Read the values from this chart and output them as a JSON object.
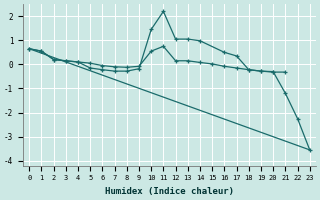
{
  "xlabel": "Humidex (Indice chaleur)",
  "background_color": "#cce8e4",
  "grid_color": "#ffffff",
  "line_color": "#1a6b6b",
  "xlim": [
    -0.5,
    23.5
  ],
  "ylim": [
    -4.2,
    2.5
  ],
  "yticks": [
    -4,
    -3,
    -2,
    -1,
    0,
    1,
    2
  ],
  "xticks": [
    0,
    1,
    2,
    3,
    4,
    5,
    6,
    7,
    8,
    9,
    10,
    11,
    12,
    13,
    14,
    15,
    16,
    17,
    18,
    19,
    20,
    21,
    22,
    23
  ],
  "series1_x": [
    0,
    1,
    2,
    3,
    4,
    5,
    6,
    7,
    8,
    9,
    10,
    11,
    12,
    13,
    14,
    15,
    16,
    17,
    18,
    19,
    20,
    21
  ],
  "series1_y": [
    0.65,
    0.55,
    0.2,
    0.15,
    0.1,
    0.05,
    -0.05,
    -0.1,
    -0.12,
    -0.08,
    0.55,
    0.75,
    0.15,
    0.15,
    0.08,
    0.02,
    -0.08,
    -0.15,
    -0.22,
    -0.28,
    -0.32,
    -0.32
  ],
  "series2_x": [
    0,
    1,
    2,
    3,
    4,
    5,
    6,
    7,
    8,
    9,
    10,
    11,
    12,
    13,
    14,
    16,
    17,
    18,
    19,
    20,
    21,
    22,
    23
  ],
  "series2_y": [
    0.65,
    0.55,
    0.2,
    0.15,
    0.1,
    -0.15,
    -0.22,
    -0.28,
    -0.28,
    -0.18,
    1.45,
    2.2,
    1.05,
    1.05,
    0.98,
    0.5,
    0.35,
    -0.22,
    -0.28,
    -0.3,
    -1.2,
    -2.25,
    -3.55
  ],
  "series3_x": [
    0,
    23
  ],
  "series3_y": [
    0.65,
    -3.55
  ]
}
